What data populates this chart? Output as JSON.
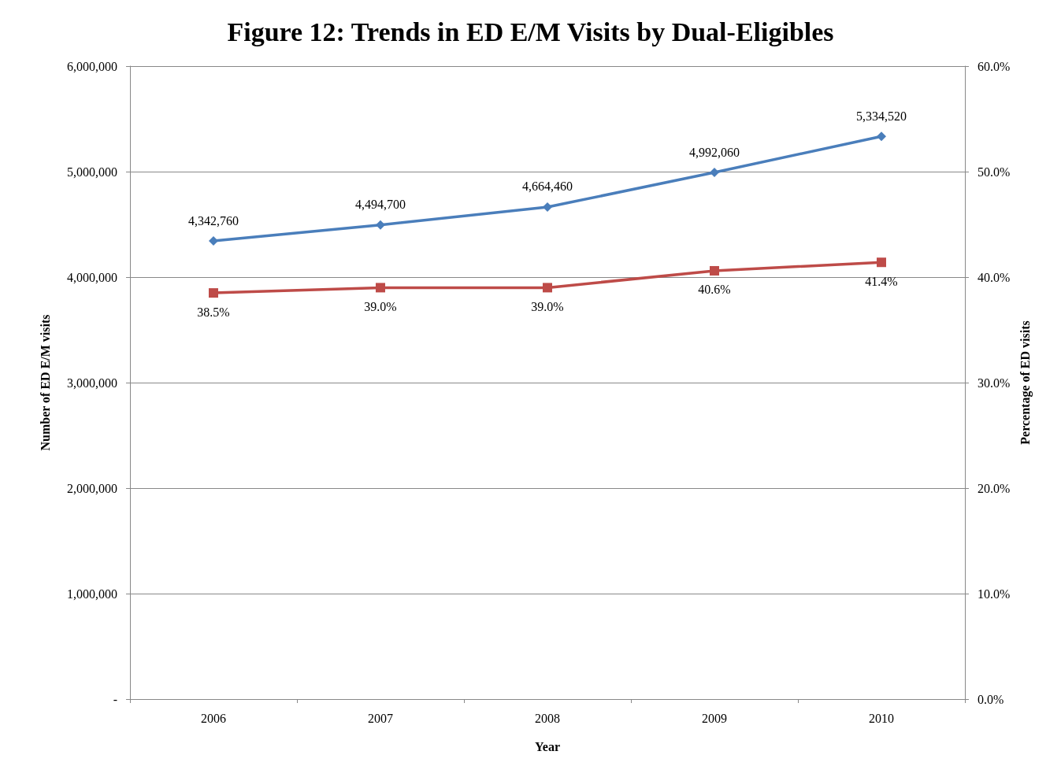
{
  "chart_data": {
    "type": "line",
    "title": "Figure 12: Trends in ED E/M Visits by Dual-Eligibles",
    "xlabel": "Year",
    "ylabel": "Number of ED E/M visits",
    "y2label": "Percentage of ED visits",
    "categories": [
      "2006",
      "2007",
      "2008",
      "2009",
      "2010"
    ],
    "series": [
      {
        "color": "#4a7ebb",
        "marker": "diamond",
        "values": [
          4342760,
          4494700,
          4664460,
          4992060,
          5334520
        ],
        "value_labels": [
          "4,342,760",
          "4,494,700",
          "4,664,460",
          "4,992,060",
          "5,334,520"
        ]
      },
      {
        "color": "#be4b48",
        "marker": "square",
        "axis": "y2",
        "values": [
          38.5,
          39.0,
          39.0,
          40.6,
          41.4
        ],
        "value_labels": [
          "38.5%",
          "39.0%",
          "39.0%",
          "40.6%",
          "41.4%"
        ]
      }
    ],
    "ylim": [
      0,
      6000000
    ],
    "yticks": [
      {
        "value": 0,
        "label": "-"
      },
      {
        "value": 1000000,
        "label": "1,000,000"
      },
      {
        "value": 2000000,
        "label": "2,000,000"
      },
      {
        "value": 3000000,
        "label": "3,000,000"
      },
      {
        "value": 4000000,
        "label": "4,000,000"
      },
      {
        "value": 5000000,
        "label": "5,000,000"
      },
      {
        "value": 6000000,
        "label": "6,000,000"
      }
    ],
    "y2lim": [
      0,
      60
    ],
    "y2ticks": [
      {
        "value": 0,
        "label": "0.0%"
      },
      {
        "value": 10,
        "label": "10.0%"
      },
      {
        "value": 20,
        "label": "20.0%"
      },
      {
        "value": 30,
        "label": "30.0%"
      },
      {
        "value": 40,
        "label": "40.0%"
      },
      {
        "value": 50,
        "label": "50.0%"
      },
      {
        "value": 60,
        "label": "60.0%"
      }
    ],
    "grid": "y",
    "line_style": "solid"
  }
}
